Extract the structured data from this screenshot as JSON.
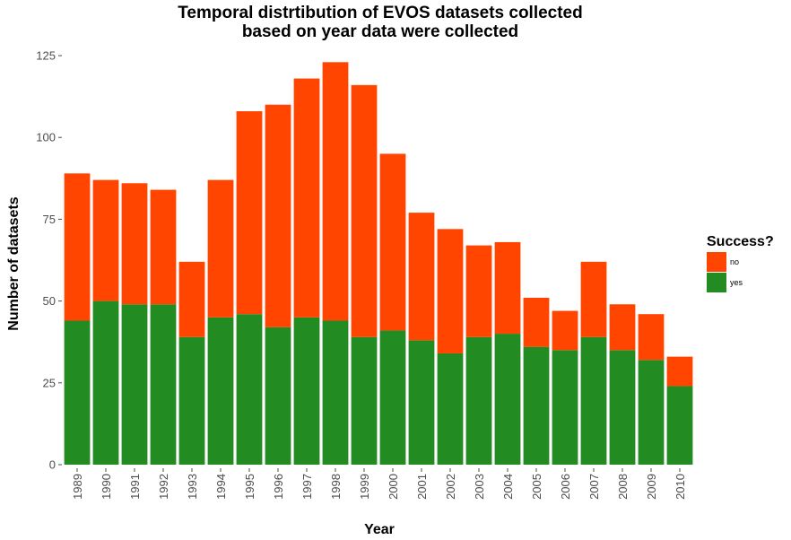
{
  "chart_data": {
    "type": "bar",
    "stacked": true,
    "title": [
      "Temporal distrtibution of EVOS datasets collected",
      "based on year data were collected"
    ],
    "xlabel": "Year",
    "ylabel": "Number of datasets",
    "ylim": [
      0,
      125
    ],
    "yticks": [
      "0",
      "25",
      "50",
      "75",
      "100",
      "125"
    ],
    "grid": false,
    "legend_position": "right",
    "legend_title": "Success?",
    "categories": [
      "1989",
      "1990",
      "1991",
      "1992",
      "1993",
      "1994",
      "1995",
      "1996",
      "1997",
      "1998",
      "1999",
      "2000",
      "2001",
      "2002",
      "2003",
      "2004",
      "2005",
      "2006",
      "2007",
      "2008",
      "2009",
      "2010"
    ],
    "series": [
      {
        "name": "yes",
        "color": "#228B22",
        "values": [
          44,
          50,
          49,
          49,
          39,
          45,
          46,
          42,
          45,
          44,
          39,
          41,
          38,
          34,
          39,
          40,
          36,
          35,
          39,
          35,
          32,
          24
        ]
      },
      {
        "name": "no",
        "color": "#FF4500",
        "values": [
          45,
          37,
          37,
          35,
          23,
          42,
          62,
          68,
          73,
          79,
          77,
          54,
          39,
          38,
          28,
          28,
          15,
          12,
          23,
          14,
          14,
          9
        ]
      }
    ],
    "legend": [
      {
        "name": "no",
        "color": "#FF4500"
      },
      {
        "name": "yes",
        "color": "#228B22"
      }
    ]
  }
}
